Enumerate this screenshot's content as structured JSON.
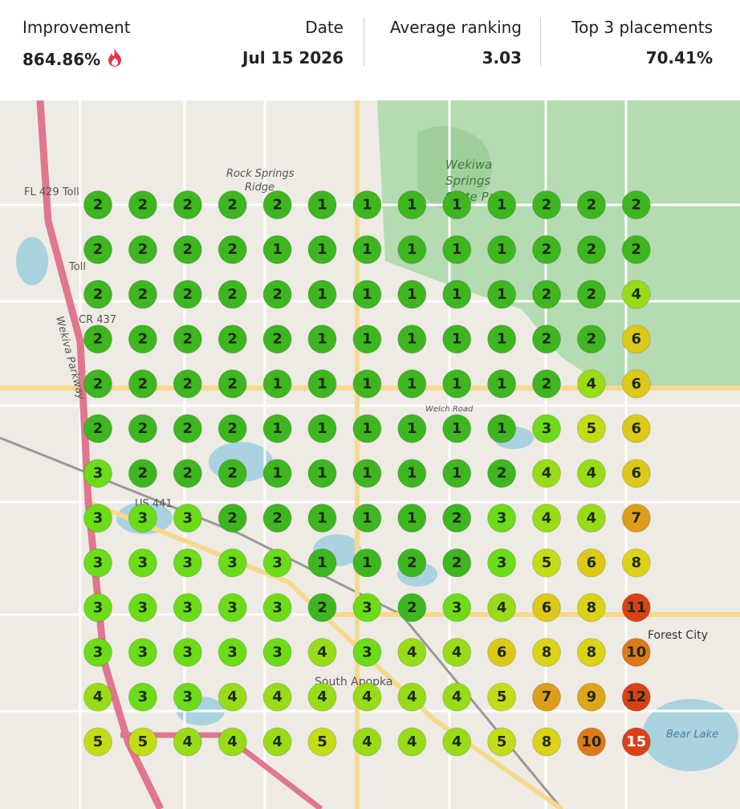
{
  "header": {
    "stats": [
      {
        "label": "Improvement",
        "value": "864.86%"
      },
      {
        "label": "Date",
        "value": "Jul 15 2026"
      },
      {
        "label": "Average ranking",
        "value": "3.03"
      },
      {
        "label": "Top 3 placements",
        "value": "70.41%"
      }
    ]
  },
  "map_labels": [
    "Rock Springs",
    "Ridge",
    "Wekiwa",
    "Springs",
    "State Park",
    "FL 429 Toll",
    "Toll",
    "CR 437",
    "Wekiva Parkway",
    "Welch Road",
    "US 441",
    "South Apopka",
    "Forest City",
    "Bear Lake"
  ],
  "grid": {
    "ranks": [
      [
        2,
        2,
        2,
        2,
        2,
        1,
        1,
        1,
        1,
        1,
        2,
        2,
        2
      ],
      [
        2,
        2,
        2,
        2,
        1,
        1,
        1,
        1,
        1,
        1,
        2,
        2,
        2
      ],
      [
        2,
        2,
        2,
        2,
        2,
        1,
        1,
        1,
        1,
        1,
        2,
        2,
        4
      ],
      [
        2,
        2,
        2,
        2,
        2,
        1,
        1,
        1,
        1,
        1,
        2,
        2,
        6
      ],
      [
        2,
        2,
        2,
        2,
        1,
        1,
        1,
        1,
        1,
        1,
        2,
        4,
        6
      ],
      [
        2,
        2,
        2,
        2,
        1,
        1,
        1,
        1,
        1,
        1,
        3,
        5,
        6
      ],
      [
        3,
        2,
        2,
        2,
        1,
        1,
        1,
        1,
        1,
        2,
        4,
        4,
        6
      ],
      [
        3,
        3,
        3,
        2,
        2,
        1,
        1,
        1,
        2,
        3,
        4,
        4,
        7
      ],
      [
        3,
        3,
        3,
        3,
        3,
        1,
        1,
        2,
        2,
        3,
        5,
        6,
        8
      ],
      [
        3,
        3,
        3,
        3,
        3,
        2,
        3,
        2,
        3,
        4,
        6,
        8,
        11
      ],
      [
        3,
        3,
        3,
        3,
        3,
        4,
        3,
        4,
        4,
        6,
        8,
        8,
        10
      ],
      [
        4,
        3,
        3,
        4,
        4,
        4,
        4,
        4,
        4,
        5,
        7,
        9,
        12
      ],
      [
        5,
        5,
        4,
        4,
        4,
        5,
        4,
        4,
        4,
        5,
        8,
        10,
        15
      ]
    ]
  }
}
